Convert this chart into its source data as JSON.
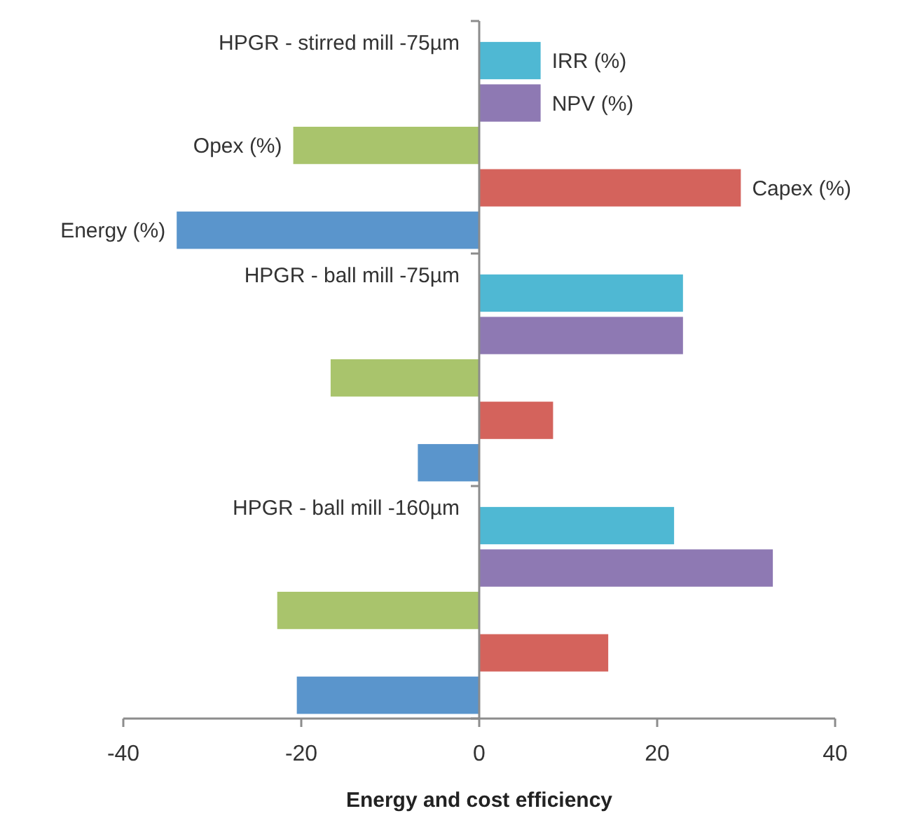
{
  "chart_data": {
    "type": "bar",
    "orientation": "horizontal",
    "xlabel": "Energy and cost efficiency",
    "categories": [
      "HPGR - stirred mill -75µm",
      "HPGR - ball mill -75µm",
      "HPGR - ball mill -160µm"
    ],
    "series": [
      {
        "name": "IRR (%)",
        "color": "#4fb8d3",
        "values": [
          6.9,
          22.9,
          21.9
        ]
      },
      {
        "name": "NPV (%)",
        "color": "#8e79b3",
        "values": [
          6.9,
          22.9,
          33.0
        ]
      },
      {
        "name": "Opex (%)",
        "color": "#a9c46c",
        "values": [
          -20.9,
          -16.7,
          -22.7
        ]
      },
      {
        "name": "Capex (%)",
        "color": "#d4635c",
        "values": [
          29.4,
          8.3,
          14.5
        ]
      },
      {
        "name": "Energy (%)",
        "color": "#5a95cc",
        "values": [
          -34.0,
          -6.9,
          -20.5
        ]
      }
    ],
    "xlim": [
      -40,
      40
    ],
    "xticks": [
      -40,
      -20,
      0,
      20,
      40
    ],
    "grid": false
  }
}
